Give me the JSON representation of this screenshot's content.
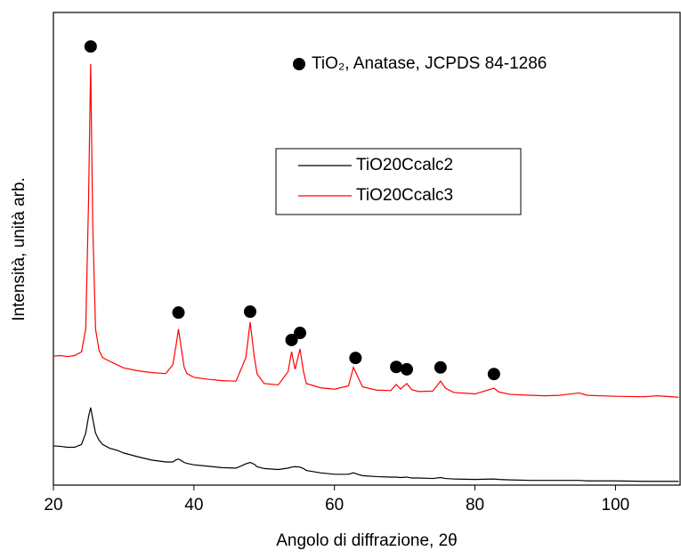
{
  "chart_data": {
    "type": "line",
    "xlabel": "Angolo di diffrazione, 2θ",
    "ylabel": "Intensità, unità arb.",
    "annotation": "TiO₂, Anatase, JCPDS 84-1286",
    "x": [
      20,
      21,
      22,
      23,
      24,
      24.6,
      25,
      25.3,
      25.6,
      26,
      26.5,
      27,
      28,
      29,
      30,
      32,
      34,
      36,
      37,
      37.5,
      37.8,
      38.2,
      38.6,
      39,
      40,
      42,
      44,
      46,
      47.4,
      48,
      48.6,
      49,
      50,
      52,
      53.4,
      53.9,
      54.4,
      55.1,
      55.6,
      56,
      58,
      60,
      62,
      62.7,
      63.3,
      64,
      66,
      68,
      68.8,
      69.4,
      70.3,
      71,
      72,
      74,
      75.1,
      75.8,
      77,
      80,
      82.7,
      83.4,
      85,
      88,
      90,
      92,
      94.8,
      96,
      100,
      104,
      106,
      109
    ],
    "series": [
      {
        "name": "TiO20Ccalc2",
        "color": "#000000",
        "values": [
          8.3,
          8.2,
          8.0,
          8.0,
          8.6,
          11,
          14.5,
          16.4,
          14,
          11,
          9.5,
          8.6,
          7.8,
          7.4,
          6.8,
          6.0,
          5.3,
          4.9,
          4.9,
          5.4,
          5.5,
          5.2,
          4.8,
          4.6,
          4.3,
          4.0,
          3.7,
          3.6,
          4.5,
          4.8,
          4.4,
          3.9,
          3.5,
          3.3,
          3.6,
          3.8,
          3.9,
          3.8,
          3.5,
          3.1,
          2.6,
          2.3,
          2.3,
          2.6,
          2.3,
          2.0,
          1.8,
          1.7,
          1.7,
          1.6,
          1.7,
          1.5,
          1.5,
          1.4,
          1.6,
          1.4,
          1.3,
          1.2,
          1.3,
          1.2,
          1.1,
          1.0,
          1.0,
          1.0,
          1.0,
          0.9,
          0.9,
          0.8,
          0.8,
          0.8
        ]
      },
      {
        "name": "TiO20Ccalc3",
        "color": "#ff0000",
        "values": [
          27.3,
          27.4,
          27.2,
          27.4,
          28.2,
          33,
          60,
          89.1,
          55,
          33,
          28.5,
          27,
          26.2,
          25.5,
          24.8,
          24.2,
          23.8,
          23.6,
          25.5,
          30,
          33,
          29,
          25,
          23.6,
          22.8,
          22.4,
          22.1,
          22,
          27,
          34.5,
          27,
          23.5,
          21.5,
          21.2,
          24,
          28.2,
          24.5,
          28.8,
          24,
          21.5,
          20.6,
          20.3,
          21,
          24.9,
          23,
          20.8,
          20.1,
          20,
          21.3,
          20.3,
          21.5,
          20.2,
          19.8,
          19.9,
          22,
          20.5,
          19.6,
          19.3,
          20.5,
          19.7,
          19.2,
          19,
          18.9,
          19,
          19.5,
          19,
          18.8,
          18.7,
          18.9,
          18.6
        ]
      }
    ],
    "markers": {
      "color": "#000000",
      "x": [
        25.3,
        37.8,
        48.0,
        53.9,
        55.1,
        63.0,
        68.8,
        70.3,
        75.1,
        82.7
      ],
      "y": [
        92.8,
        36.5,
        36.7,
        30.7,
        32.2,
        26.9,
        25.0,
        24.5,
        24.9,
        23.5
      ]
    },
    "xlim": [
      20,
      109.2
    ],
    "xticks": [
      20,
      40,
      60,
      80,
      100
    ],
    "ylim": [
      0,
      100
    ],
    "legend": "center"
  }
}
